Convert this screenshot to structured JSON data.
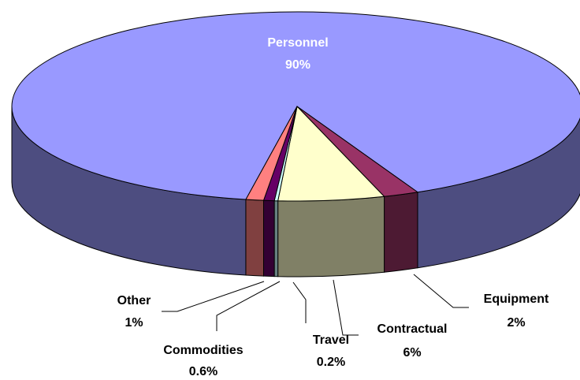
{
  "chart_data": {
    "type": "pie",
    "categories": [
      "Personnel",
      "Equipment",
      "Contractual",
      "Travel",
      "Commodities",
      "Other"
    ],
    "values": [
      90,
      2,
      6,
      0.2,
      0.6,
      1
    ],
    "value_labels": [
      "90%",
      "2%",
      "6%",
      "0.2%",
      "0.6%",
      "1%"
    ],
    "colors": [
      "#9999ff",
      "#993366",
      "#ffffcc",
      "#ccffff",
      "#660066",
      "#ff8080"
    ]
  }
}
